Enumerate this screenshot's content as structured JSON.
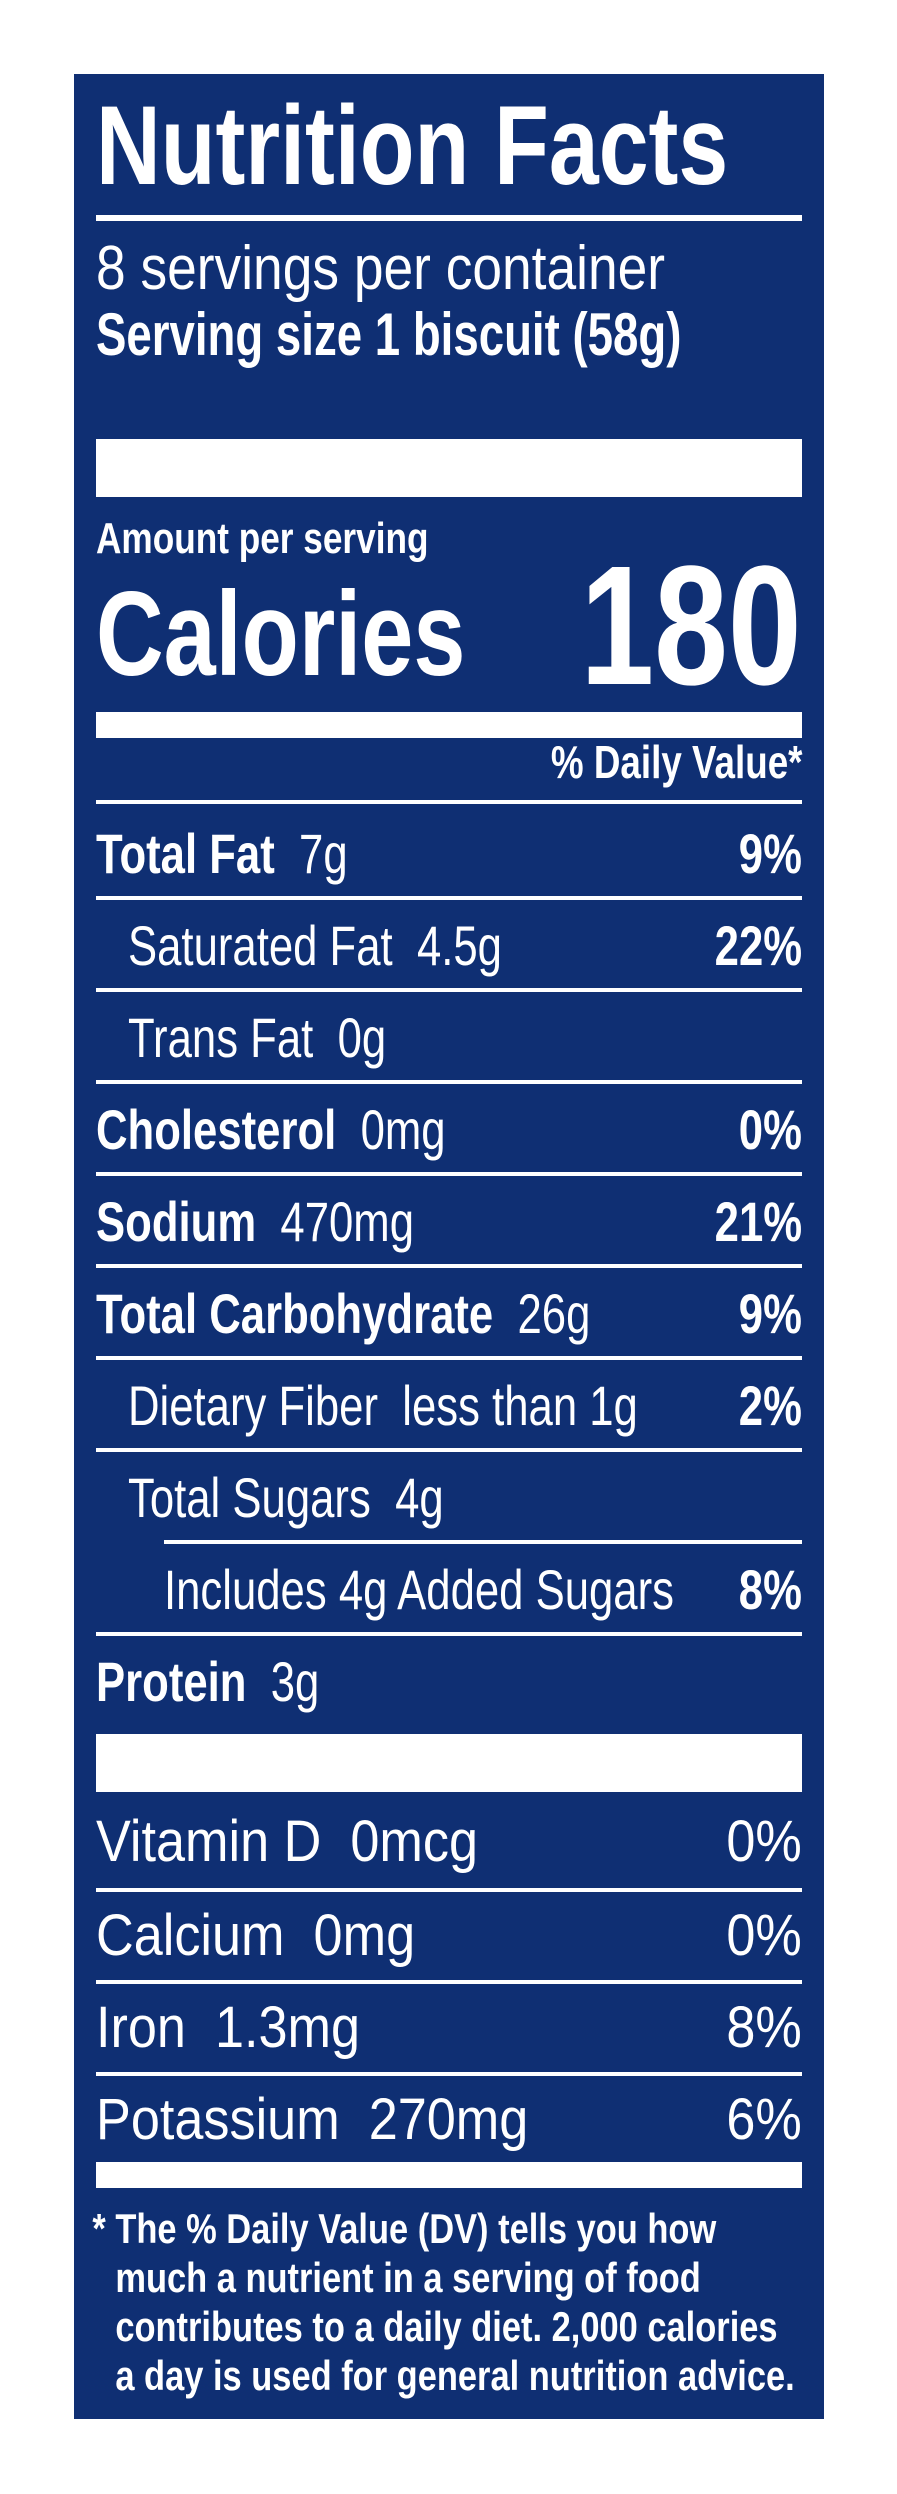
{
  "label": {
    "title": "Nutrition Facts",
    "servings_per_container": "8 servings per container",
    "serving_size_label": "Serving size",
    "serving_size_value": "1 biscuit (58g)",
    "amount_per_serving": "Amount per serving",
    "calories_label": "Calories",
    "calories_value": "180",
    "daily_value_header": "% Daily Value*",
    "colors": {
      "background": "#0f2f73",
      "text": "#ffffff",
      "page": "#ffffff"
    }
  },
  "nutrients": [
    {
      "name": "Total Fat",
      "amount": "7g",
      "dv": "9%"
    },
    {
      "name": "Saturated Fat",
      "amount": "4.5g",
      "dv": "22%"
    },
    {
      "name": "Trans Fat",
      "amount": "0g",
      "dv": ""
    },
    {
      "name": "Cholesterol",
      "amount": "0mg",
      "dv": "0%"
    },
    {
      "name": "Sodium",
      "amount": "470mg",
      "dv": "21%"
    },
    {
      "name": "Total Carbohydrate",
      "amount": "26g",
      "dv": "9%"
    },
    {
      "name": "Dietary Fiber",
      "amount": "less than 1g",
      "dv": "2%"
    },
    {
      "name": "Total Sugars",
      "amount": "4g",
      "dv": ""
    },
    {
      "name": "Includes 4g Added Sugars",
      "amount": "",
      "dv": "8%"
    },
    {
      "name": "Protein",
      "amount": "3g",
      "dv": ""
    }
  ],
  "vitamins": [
    {
      "name": "Vitamin D",
      "amount": "0mcg",
      "dv": "0%"
    },
    {
      "name": "Calcium",
      "amount": "0mg",
      "dv": "0%"
    },
    {
      "name": "Iron",
      "amount": "1.3mg",
      "dv": "8%"
    },
    {
      "name": "Potassium",
      "amount": "270mg",
      "dv": "6%"
    }
  ],
  "footnote": {
    "asterisk": "*",
    "lines": [
      "The % Daily Value (DV) tells you how",
      "much a nutrient in a serving of food",
      "contributes to a daily diet. 2,000 calories",
      "a day is used for general nutrition advice."
    ]
  }
}
